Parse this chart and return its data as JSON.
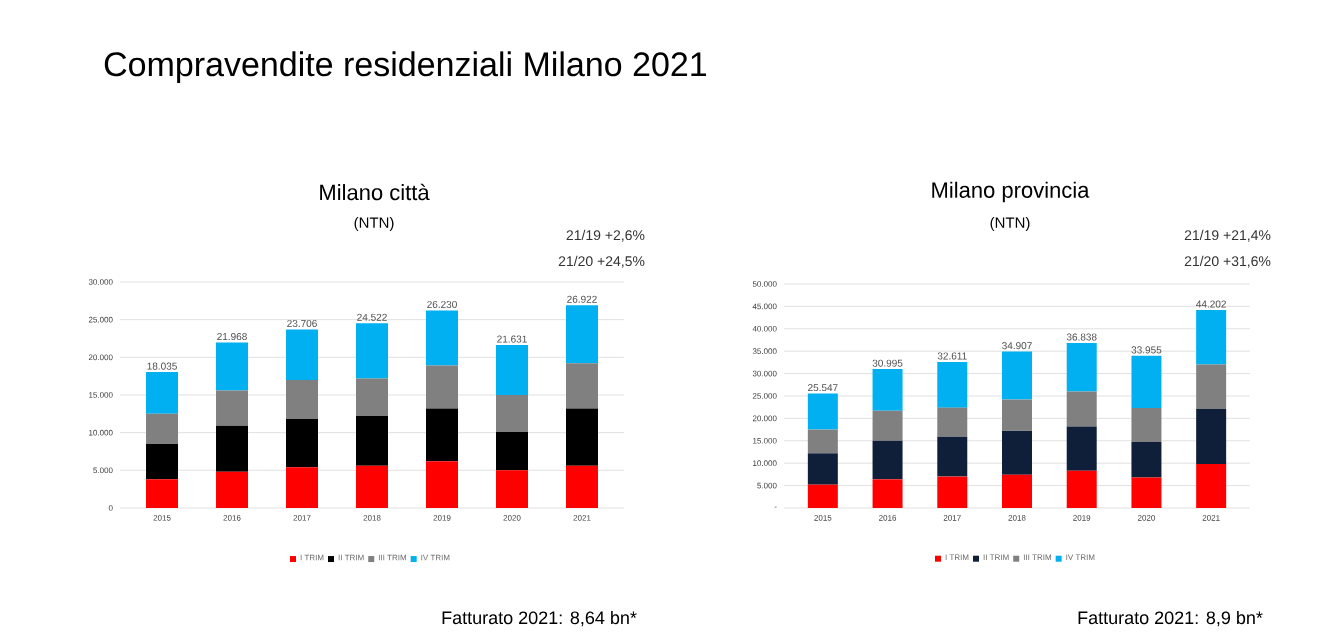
{
  "chart_data": [
    {
      "type": "bar",
      "stacked": true,
      "title": "Milano città",
      "subtitle": "(NTN)",
      "annotations": [
        "Compravendite residenziali Milano 2021",
        "21/19 +2,6%",
        "21/20 +24,5%",
        "Fatturato 2021: 8,64 bn*"
      ],
      "categories": [
        "2015",
        "2016",
        "2017",
        "2018",
        "2019",
        "2020",
        "2021"
      ],
      "series": [
        {
          "name": "I TRIM",
          "color": "#ff0000",
          "values": [
            3800,
            4800,
            5400,
            5600,
            6200,
            5000,
            5600
          ]
        },
        {
          "name": "II TRIM",
          "color": "#000000",
          "values": [
            4700,
            6100,
            6400,
            6600,
            7000,
            5100,
            7600
          ]
        },
        {
          "name": "III TRIM",
          "color": "#808080",
          "values": [
            4000,
            4700,
            5200,
            5000,
            5700,
            4900,
            6000
          ]
        },
        {
          "name": "IV TRIM",
          "color": "#00b0f0",
          "values": [
            5535,
            6368,
            6706,
            7322,
            7330,
            6631,
            7722
          ]
        }
      ],
      "totals": [
        "18.035",
        "21.968",
        "23.706",
        "24.522",
        "26.230",
        "21.631",
        "26.922"
      ],
      "ylim": [
        0,
        30000
      ],
      "yticks": [
        {
          "value": 0,
          "label": "0"
        },
        {
          "value": 5000,
          "label": "5.000"
        },
        {
          "value": 10000,
          "label": "10.000"
        },
        {
          "value": 15000,
          "label": "15.000"
        },
        {
          "value": 20000,
          "label": "20.000"
        },
        {
          "value": 25000,
          "label": "25.000"
        },
        {
          "value": 30000,
          "label": "30.000"
        }
      ],
      "grid": "y",
      "legend": "bottom"
    },
    {
      "type": "bar",
      "stacked": true,
      "title": "Milano provincia",
      "subtitle": "(NTN)",
      "annotations": [
        "21/19 +21,4%",
        "21/20 +31,6%",
        "Fatturato 2021: 8,9 bn*"
      ],
      "categories": [
        "2015",
        "2016",
        "2017",
        "2018",
        "2019",
        "2020",
        "2021"
      ],
      "series": [
        {
          "name": "I TRIM",
          "color": "#ff0000",
          "values": [
            5200,
            6400,
            7000,
            7400,
            8300,
            6800,
            9800
          ]
        },
        {
          "name": "II TRIM",
          "color": "#0f1f3a",
          "values": [
            7000,
            8600,
            8900,
            9800,
            9900,
            7900,
            12300
          ]
        },
        {
          "name": "III TRIM",
          "color": "#808080",
          "values": [
            5300,
            6700,
            6500,
            7000,
            7800,
            7600,
            9900
          ]
        },
        {
          "name": "IV TRIM",
          "color": "#00b0f0",
          "values": [
            8047,
            9295,
            10211,
            10707,
            10838,
            11655,
            12202
          ]
        }
      ],
      "totals": [
        "25.547",
        "30.995",
        "32.611",
        "34.907",
        "36.838",
        "33.955",
        "44.202"
      ],
      "ylim": [
        0,
        50000
      ],
      "yticks": [
        {
          "value": 0,
          "label": "-"
        },
        {
          "value": 5000,
          "label": "5.000"
        },
        {
          "value": 10000,
          "label": "10.000"
        },
        {
          "value": 15000,
          "label": "15.000"
        },
        {
          "value": 20000,
          "label": "20.000"
        },
        {
          "value": 25000,
          "label": "25.000"
        },
        {
          "value": 30000,
          "label": "30.000"
        },
        {
          "value": 35000,
          "label": "35.000"
        },
        {
          "value": 40000,
          "label": "40.000"
        },
        {
          "value": 45000,
          "label": "45.000"
        },
        {
          "value": 50000,
          "label": "50.000"
        }
      ],
      "grid": "y",
      "legend": "bottom"
    }
  ]
}
